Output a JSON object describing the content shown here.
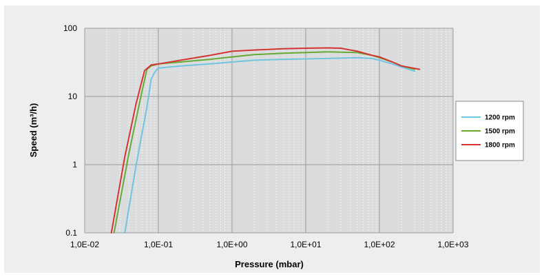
{
  "chart_data": {
    "type": "line",
    "xlabel": "Pressure (mbar)",
    "ylabel": "Speed (m³/h)",
    "xscale": "log",
    "yscale": "log",
    "xlim": [
      0.01,
      1000
    ],
    "ylim": [
      0.1,
      100
    ],
    "x_tick_labels": [
      "1,0E-02",
      "1,0E-01",
      "1,0E+00",
      "1,0E+01",
      "1,0E+02",
      "1,0E+03"
    ],
    "y_tick_labels": [
      "0.1",
      "1",
      "10",
      "100"
    ],
    "grid": true,
    "legend_position": "right",
    "series": [
      {
        "name": "1200 rpm",
        "color": "#6fc4e0",
        "points": [
          [
            0.035,
            0.1
          ],
          [
            0.05,
            1.0
          ],
          [
            0.07,
            7.0
          ],
          [
            0.08,
            18
          ],
          [
            0.09,
            23
          ],
          [
            0.1,
            26
          ],
          [
            0.2,
            28
          ],
          [
            0.5,
            30
          ],
          [
            1.0,
            32
          ],
          [
            2.0,
            34
          ],
          [
            5.0,
            35
          ],
          [
            10,
            35.5
          ],
          [
            20,
            36
          ],
          [
            50,
            37
          ],
          [
            80,
            36
          ],
          [
            100,
            34
          ],
          [
            150,
            30
          ],
          [
            200,
            27
          ],
          [
            300,
            23.5
          ]
        ]
      },
      {
        "name": "1500 rpm",
        "color": "#66aa33",
        "points": [
          [
            0.025,
            0.1
          ],
          [
            0.04,
            1.5
          ],
          [
            0.06,
            12
          ],
          [
            0.07,
            25
          ],
          [
            0.08,
            28
          ],
          [
            0.1,
            30
          ],
          [
            0.2,
            32
          ],
          [
            0.5,
            35
          ],
          [
            1.0,
            38
          ],
          [
            2.0,
            41
          ],
          [
            5.0,
            43
          ],
          [
            10,
            44
          ],
          [
            20,
            45
          ],
          [
            50,
            44
          ],
          [
            80,
            40
          ],
          [
            100,
            37
          ],
          [
            150,
            32
          ],
          [
            200,
            28
          ],
          [
            300,
            25
          ]
        ]
      },
      {
        "name": "1800 rpm",
        "color": "#d63333",
        "points": [
          [
            0.023,
            0.1
          ],
          [
            0.035,
            1.3
          ],
          [
            0.05,
            8
          ],
          [
            0.065,
            24
          ],
          [
            0.08,
            29
          ],
          [
            0.1,
            30
          ],
          [
            0.2,
            34
          ],
          [
            0.5,
            40
          ],
          [
            1.0,
            46
          ],
          [
            2.0,
            48
          ],
          [
            5.0,
            50
          ],
          [
            10,
            51
          ],
          [
            20,
            51.5
          ],
          [
            30,
            51
          ],
          [
            50,
            46
          ],
          [
            80,
            40
          ],
          [
            100,
            38
          ],
          [
            150,
            32
          ],
          [
            200,
            28
          ],
          [
            350,
            25
          ]
        ]
      }
    ]
  }
}
